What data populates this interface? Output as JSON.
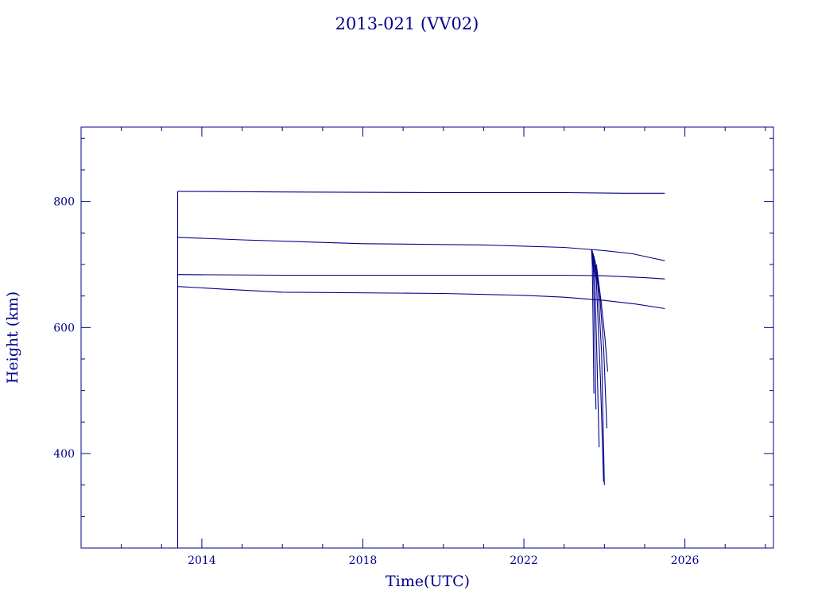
{
  "chart_data": {
    "type": "line",
    "title": "2013-021 (VV02)",
    "xlabel": "Time(UTC)",
    "ylabel": "Height (km)",
    "xlim": [
      2011.0,
      2028.2
    ],
    "ylim": [
      250,
      918
    ],
    "x_ticks": [
      2014,
      2018,
      2022,
      2026
    ],
    "x_tick_labels": [
      "2014",
      "2018",
      "2022",
      "2026"
    ],
    "y_ticks": [
      400,
      600,
      800
    ],
    "y_tick_labels": [
      "400",
      "600",
      "800"
    ],
    "grid": false,
    "colors": {
      "line": "#00008b",
      "axes": "#00008b"
    },
    "series": [
      {
        "x": [
          2013.4,
          2013.4,
          2013.4
        ],
        "y": [
          250,
          672,
          816
        ]
      },
      {
        "x": [
          2013.4,
          2016.0,
          2020.0,
          2023.0,
          2024.5,
          2025.5
        ],
        "y": [
          816,
          815,
          814,
          814,
          813,
          813
        ]
      },
      {
        "x": [
          2013.4,
          2015.0,
          2018.0,
          2021.0,
          2023.0,
          2024.0,
          2024.7,
          2025.2,
          2025.5
        ],
        "y": [
          743,
          739,
          733,
          731,
          727,
          722,
          717,
          710,
          706
        ]
      },
      {
        "x": [
          2013.4,
          2016.0,
          2020.0,
          2023.0,
          2024.0,
          2025.0,
          2025.5
        ],
        "y": [
          684,
          683,
          683,
          683,
          682,
          679,
          677
        ]
      },
      {
        "x": [
          2013.4,
          2014.5,
          2016.0,
          2020.0,
          2022.0,
          2023.0,
          2024.0,
          2024.8,
          2025.5
        ],
        "y": [
          665,
          661,
          656,
          654,
          651,
          648,
          643,
          637,
          630
        ]
      },
      {
        "x": [
          2023.68,
          2023.7,
          2023.72,
          2023.74
        ],
        "y": [
          724,
          700,
          605,
          495
        ]
      },
      {
        "x": [
          2023.69,
          2023.73,
          2023.76,
          2023.79
        ],
        "y": [
          724,
          690,
          580,
          470
        ]
      },
      {
        "x": [
          2023.7,
          2023.76,
          2023.82,
          2023.87
        ],
        "y": [
          722,
          680,
          540,
          410
        ]
      },
      {
        "x": [
          2023.72,
          2023.8,
          2023.9,
          2023.98
        ],
        "y": [
          718,
          675,
          520,
          355
        ]
      },
      {
        "x": [
          2023.74,
          2023.84,
          2023.93,
          2024.0
        ],
        "y": [
          714,
          665,
          560,
          350
        ]
      },
      {
        "x": [
          2023.76,
          2023.88,
          2023.98,
          2024.06
        ],
        "y": [
          708,
          655,
          570,
          440
        ]
      },
      {
        "x": [
          2023.8,
          2023.92,
          2024.02,
          2024.08
        ],
        "y": [
          700,
          640,
          580,
          530
        ]
      }
    ]
  }
}
